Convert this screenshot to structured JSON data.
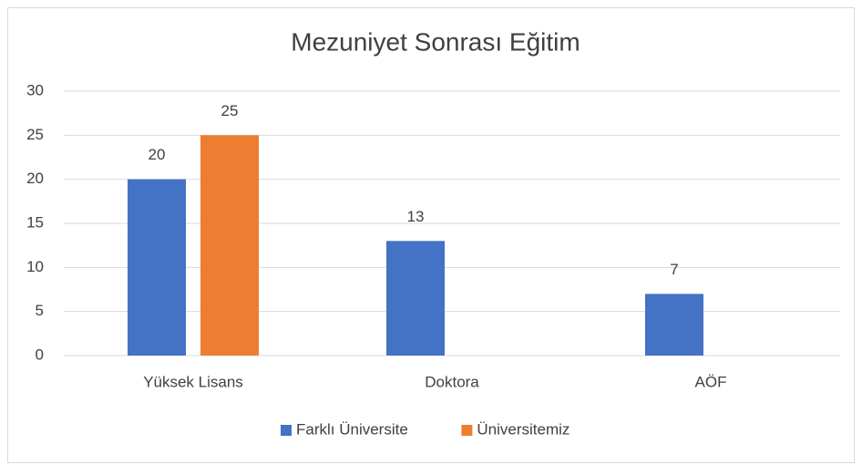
{
  "chart_data": {
    "type": "bar",
    "title": "Mezuniyet Sonrası Eğitim",
    "categories": [
      "Yüksek Lisans",
      "Doktora",
      "AÖF"
    ],
    "series": [
      {
        "name": "Farklı Üniversite",
        "color": "#4472c4",
        "values": [
          20,
          13,
          7
        ]
      },
      {
        "name": "Üniversitemiz",
        "color": "#ed7d31",
        "values": [
          25,
          null,
          null
        ]
      }
    ],
    "ylim": [
      0,
      30
    ],
    "yticks": [
      0,
      5,
      10,
      15,
      20,
      25,
      30
    ],
    "grid": true,
    "legend": "bottom"
  }
}
